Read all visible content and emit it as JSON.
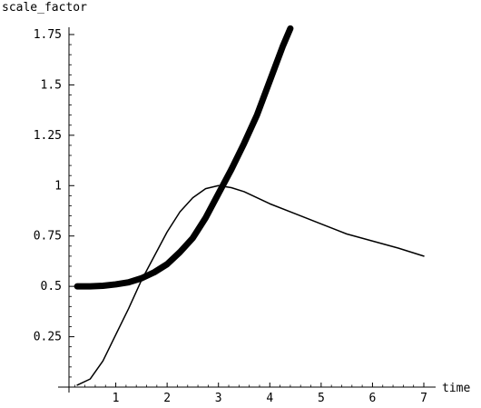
{
  "chart_data": {
    "type": "line",
    "xlabel": "time",
    "ylabel": "scale_factor",
    "xlim": [
      0,
      7
    ],
    "ylim": [
      0,
      1.75
    ],
    "xticks": [
      {
        "value": 1,
        "label": "1"
      },
      {
        "value": 2,
        "label": "2"
      },
      {
        "value": 3,
        "label": "3"
      },
      {
        "value": 4,
        "label": "4"
      },
      {
        "value": 5,
        "label": "5"
      },
      {
        "value": 6,
        "label": "6"
      },
      {
        "value": 7,
        "label": "7"
      }
    ],
    "yticks": [
      {
        "value": 0.25,
        "label": "0.25"
      },
      {
        "value": 0.5,
        "label": "0.5"
      },
      {
        "value": 0.75,
        "label": "0.75"
      },
      {
        "value": 1,
        "label": "1"
      },
      {
        "value": 1.25,
        "label": "1.25"
      },
      {
        "value": 1.5,
        "label": "1.5"
      },
      {
        "value": 1.75,
        "label": "1.75"
      }
    ],
    "series": [
      {
        "style": "thick",
        "color": "#000000",
        "x": [
          0.25,
          0.5,
          0.75,
          1.0,
          1.25,
          1.5,
          1.75,
          2.0,
          2.25,
          2.5,
          2.75,
          3.0,
          3.25,
          3.5,
          3.75,
          4.0,
          4.25,
          4.4
        ],
        "y": [
          0.5,
          0.5,
          0.503,
          0.51,
          0.52,
          0.54,
          0.57,
          0.61,
          0.67,
          0.74,
          0.84,
          0.96,
          1.08,
          1.21,
          1.35,
          1.52,
          1.69,
          1.78
        ]
      },
      {
        "style": "thin",
        "color": "#000000",
        "x": [
          0.25,
          0.5,
          0.75,
          1.0,
          1.25,
          1.5,
          1.75,
          2.0,
          2.25,
          2.5,
          2.75,
          3.0,
          3.25,
          3.5,
          4.0,
          4.5,
          5.0,
          5.5,
          6.0,
          6.5,
          7.0
        ],
        "y": [
          0.01,
          0.04,
          0.13,
          0.26,
          0.39,
          0.53,
          0.65,
          0.77,
          0.87,
          0.94,
          0.985,
          1.0,
          0.99,
          0.97,
          0.91,
          0.86,
          0.81,
          0.76,
          0.725,
          0.69,
          0.65
        ]
      }
    ]
  }
}
